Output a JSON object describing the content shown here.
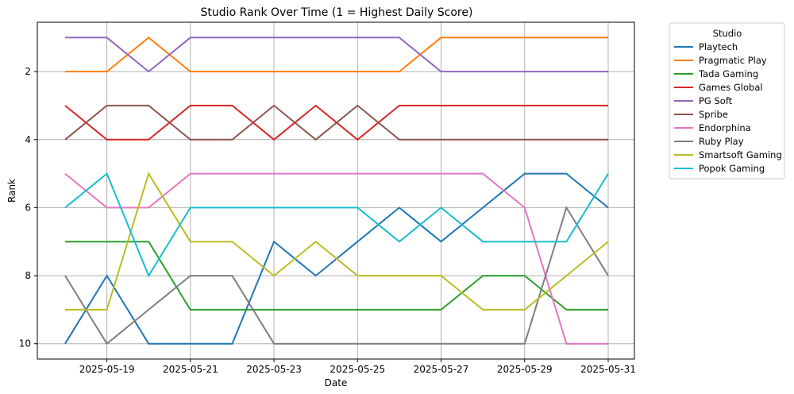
{
  "chart_data": {
    "type": "line",
    "title": "Studio Rank Over Time (1 = Highest Daily Score)",
    "xlabel": "Date",
    "ylabel": "Rank",
    "x": [
      "2025-05-18",
      "2025-05-19",
      "2025-05-20",
      "2025-05-21",
      "2025-05-22",
      "2025-05-23",
      "2025-05-24",
      "2025-05-25",
      "2025-05-26",
      "2025-05-27",
      "2025-05-28",
      "2025-05-29",
      "2025-05-30",
      "2025-05-31"
    ],
    "x_ticks": [
      "2025-05-19",
      "2025-05-21",
      "2025-05-23",
      "2025-05-25",
      "2025-05-27",
      "2025-05-29",
      "2025-05-31"
    ],
    "y_ticks": [
      2,
      4,
      6,
      8,
      10
    ],
    "ylim": [
      10.45,
      0.55
    ],
    "y_inverted": true,
    "grid": true,
    "legend_title": "Studio",
    "legend_placement": "outside-top-right",
    "series": [
      {
        "name": "Playtech",
        "color": "#1f77b4",
        "values": [
          10,
          8,
          10,
          10,
          10,
          7,
          8,
          7,
          6,
          7,
          6,
          5,
          5,
          6
        ]
      },
      {
        "name": "Pragmatic Play",
        "color": "#ff7f0e",
        "values": [
          2,
          2,
          1,
          2,
          2,
          2,
          2,
          2,
          2,
          1,
          1,
          1,
          1,
          1
        ]
      },
      {
        "name": "Tada Gaming",
        "color": "#2ca02c",
        "values": [
          7,
          7,
          7,
          9,
          9,
          9,
          9,
          9,
          9,
          9,
          8,
          8,
          9,
          9
        ]
      },
      {
        "name": "Games Global",
        "color": "#d62728",
        "values": [
          3,
          4,
          4,
          3,
          3,
          4,
          3,
          4,
          3,
          3,
          3,
          3,
          3,
          3
        ]
      },
      {
        "name": "PG Soft",
        "color": "#9467bd",
        "values": [
          1,
          1,
          2,
          1,
          1,
          1,
          1,
          1,
          1,
          2,
          2,
          2,
          2,
          2
        ]
      },
      {
        "name": "Spribe",
        "color": "#8c564b",
        "values": [
          4,
          3,
          3,
          4,
          4,
          3,
          4,
          3,
          4,
          4,
          4,
          4,
          4,
          4
        ]
      },
      {
        "name": "Endorphina",
        "color": "#e377c2",
        "values": [
          5,
          6,
          6,
          5,
          5,
          5,
          5,
          5,
          5,
          5,
          5,
          6,
          10,
          10
        ]
      },
      {
        "name": "Ruby Play",
        "color": "#7f7f7f",
        "values": [
          8,
          10,
          9,
          8,
          8,
          10,
          10,
          10,
          10,
          10,
          10,
          10,
          6,
          8
        ]
      },
      {
        "name": "Smartsoft Gaming",
        "color": "#bcbd22",
        "values": [
          9,
          9,
          5,
          7,
          7,
          8,
          7,
          8,
          8,
          8,
          9,
          9,
          8,
          7
        ]
      },
      {
        "name": "Popok Gaming",
        "color": "#17becf",
        "values": [
          6,
          5,
          8,
          6,
          6,
          6,
          6,
          6,
          7,
          6,
          7,
          7,
          7,
          5
        ]
      }
    ]
  }
}
